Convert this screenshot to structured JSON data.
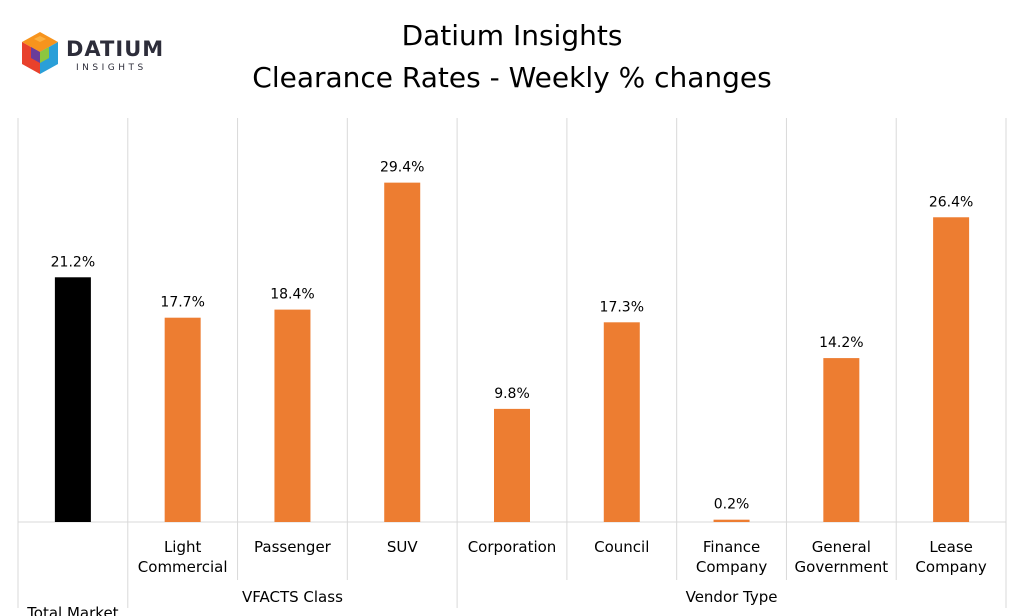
{
  "logo": {
    "word": "DATIUM",
    "sub": "INSIGHTS",
    "colors": [
      "#e8412c",
      "#f7941d",
      "#2a9fd8",
      "#8dc63f",
      "#6a3d9a",
      "#fbb040"
    ]
  },
  "chart_data": {
    "type": "bar",
    "title": [
      "Datium Insights",
      "Clearance Rates - Weekly % changes"
    ],
    "categories": [
      [
        "",
        "Total Market"
      ],
      [
        "Light",
        "Commercial"
      ],
      [
        "Passenger"
      ],
      [
        "SUV"
      ],
      [
        "Corporation"
      ],
      [
        "Council"
      ],
      [
        "Finance",
        "Company"
      ],
      [
        "General",
        "Government"
      ],
      [
        "Lease",
        "Company"
      ]
    ],
    "values": [
      21.2,
      17.7,
      18.4,
      29.4,
      9.8,
      17.3,
      0.2,
      14.2,
      26.4
    ],
    "data_labels": [
      "21.2%",
      "17.7%",
      "18.4%",
      "29.4%",
      "9.8%",
      "17.3%",
      "0.2%",
      "14.2%",
      "26.4%"
    ],
    "bar_colors": [
      "#000000",
      "#ed7d31",
      "#ed7d31",
      "#ed7d31",
      "#ed7d31",
      "#ed7d31",
      "#ed7d31",
      "#ed7d31",
      "#ed7d31"
    ],
    "groups": [
      {
        "label": "",
        "start": 0,
        "end": 0
      },
      {
        "label": "VFACTS Class",
        "start": 1,
        "end": 3
      },
      {
        "label": "Vendor Type",
        "start": 4,
        "end": 8
      }
    ],
    "ylim": [
      0,
      35
    ],
    "gridlines": "vertical category separators",
    "legend": "none"
  }
}
